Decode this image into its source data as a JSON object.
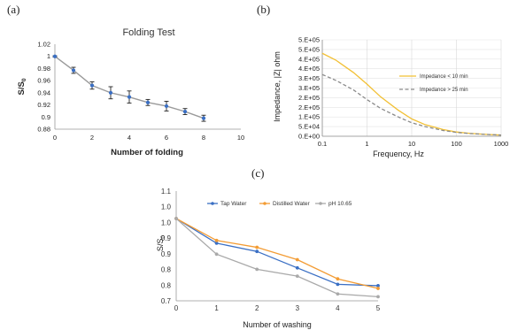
{
  "panel_labels": [
    "(a)",
    "(b)",
    "(c)"
  ],
  "chart_data": [
    {
      "type": "line",
      "title": "Folding Test",
      "xlabel": "Number of folding",
      "ylabel": "S/S",
      "ylabel_sub": "0",
      "xlim": [
        0,
        10
      ],
      "ylim": [
        0.88,
        1.02
      ],
      "xticks": [
        "0",
        "2",
        "4",
        "6",
        "8",
        "10"
      ],
      "yticks": [
        "0.88",
        "0.9",
        "0.92",
        "0.94",
        "0.96",
        "0.98",
        "1",
        "1.02"
      ],
      "x": [
        0,
        1,
        2,
        3,
        4,
        5,
        6,
        7,
        8
      ],
      "y": [
        1.0,
        0.977,
        0.952,
        0.94,
        0.933,
        0.924,
        0.918,
        0.909,
        0.898
      ],
      "error": [
        0.001,
        0.005,
        0.006,
        0.01,
        0.01,
        0.005,
        0.008,
        0.005,
        0.005
      ],
      "color": "#3a6fc4",
      "grid": false
    },
    {
      "type": "line",
      "title": "",
      "xlabel": "Frequency, Hz",
      "ylabel": "Impedance, |Z| ohm",
      "xscale": "log",
      "xlim": [
        0.1,
        1000
      ],
      "ylim": [
        0,
        500000
      ],
      "xticks": [
        "0.1",
        "1",
        "10",
        "100",
        "1000"
      ],
      "yticks": [
        "0.E+00",
        "5.E+04",
        "1.E+05",
        "2.E+05",
        "2.E+05",
        "3.E+05",
        "3.E+05",
        "4.E+05",
        "4.E+05",
        "5.E+05",
        "5.E+05"
      ],
      "series": [
        {
          "name": "Impedance < 10 min",
          "x": [
            0.1,
            0.2,
            0.5,
            1,
            2,
            5,
            10,
            20,
            50,
            100,
            200,
            500,
            1000
          ],
          "y": [
            430000,
            395000,
            330000,
            270000,
            205000,
            135000,
            90000,
            60000,
            35000,
            22000,
            15000,
            9000,
            6000
          ],
          "color": "#f2c035",
          "dash": "solid"
        },
        {
          "name": "Impedance > 25 min",
          "x": [
            0.1,
            0.2,
            0.5,
            1,
            2,
            5,
            10,
            20,
            50,
            100,
            200,
            500,
            1000
          ],
          "y": [
            320000,
            290000,
            240000,
            190000,
            145000,
            100000,
            70000,
            50000,
            30000,
            20000,
            14000,
            9000,
            6000
          ],
          "color": "#8a8a8a",
          "dash": "dashed"
        }
      ],
      "legend": "center-right",
      "grid": true
    },
    {
      "type": "line",
      "title": "",
      "xlabel": "Number of washing",
      "ylabel": "S/S",
      "ylabel_sub": "0",
      "xlim": [
        0,
        5
      ],
      "ylim": [
        0.7,
        1.1
      ],
      "xticks": [
        "0",
        "1",
        "2",
        "3",
        "4",
        "5"
      ],
      "yticks": [
        "0.7",
        "0.8",
        "0.8",
        "0.9",
        "0.9",
        "1.0",
        "1.0",
        "1.1"
      ],
      "x": [
        0,
        1,
        2,
        3,
        4,
        5
      ],
      "series": [
        {
          "name": "Tap Water",
          "y": [
            1.0,
            0.91,
            0.88,
            0.82,
            0.76,
            0.755
          ],
          "color": "#3a6fc4"
        },
        {
          "name": "Distilled Water",
          "y": [
            1.0,
            0.92,
            0.895,
            0.85,
            0.78,
            0.745
          ],
          "color": "#f39c34"
        },
        {
          "name": "pH 10.65",
          "y": [
            1.0,
            0.87,
            0.815,
            0.79,
            0.725,
            0.715
          ],
          "color": "#a9a9a9"
        }
      ],
      "legend": "top",
      "grid": false
    }
  ]
}
